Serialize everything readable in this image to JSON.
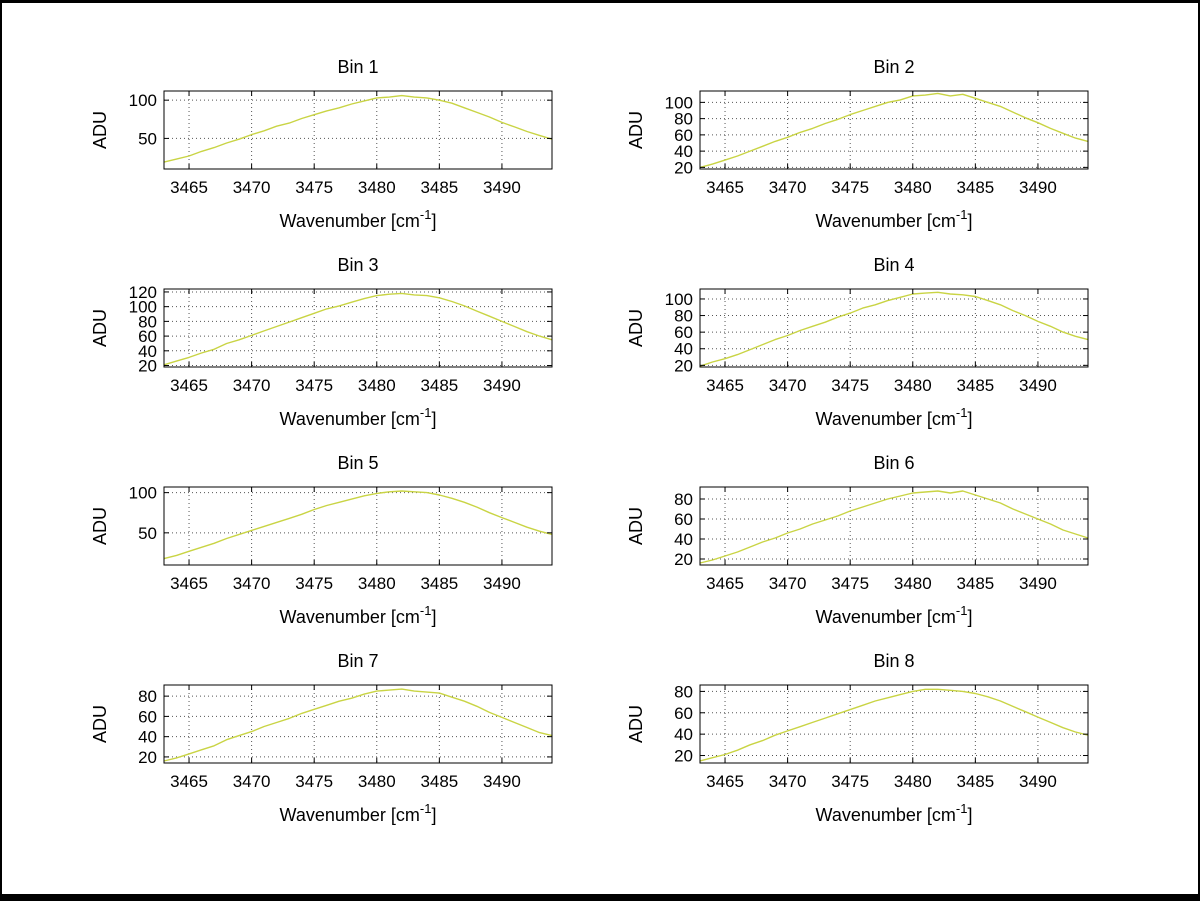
{
  "figure": {
    "background": "#ffffff",
    "border_color": "#000000"
  },
  "style": {
    "line_color": "#c9d444",
    "axis_color": "#000000",
    "grid_color": "#555555",
    "text_color": "#000000"
  },
  "chart_data": [
    {
      "type": "line",
      "title": "Bin 1",
      "ylabel": "ADU",
      "xlabel": {
        "pre": "Wavenumber [cm",
        "sup": "-1",
        "post": "]"
      },
      "xlim": [
        3463,
        3494
      ],
      "ylim": [
        10,
        112
      ],
      "xticks": [
        3465,
        3470,
        3475,
        3480,
        3485,
        3490
      ],
      "yticks": [
        50,
        100
      ],
      "x": [
        3463,
        3464,
        3465,
        3466,
        3467,
        3468,
        3469,
        3470,
        3471,
        3472,
        3473,
        3474,
        3475,
        3476,
        3477,
        3478,
        3479,
        3480,
        3481,
        3482,
        3483,
        3484,
        3485,
        3486,
        3487,
        3488,
        3489,
        3490,
        3491,
        3492,
        3493,
        3494
      ],
      "y": [
        19,
        23,
        27,
        33,
        38,
        44,
        49,
        55,
        60,
        66,
        70,
        76,
        81,
        86,
        90,
        95,
        99,
        103,
        104,
        106,
        104,
        103,
        100,
        96,
        90,
        84,
        78,
        71,
        65,
        59,
        54,
        49
      ]
    },
    {
      "type": "line",
      "title": "Bin 2",
      "ylabel": "ADU",
      "xlabel": {
        "pre": "Wavenumber [cm",
        "sup": "-1",
        "post": "]"
      },
      "xlim": [
        3463,
        3494
      ],
      "ylim": [
        18,
        114
      ],
      "xticks": [
        3465,
        3470,
        3475,
        3480,
        3485,
        3490
      ],
      "yticks": [
        20,
        40,
        60,
        80,
        100
      ],
      "x": [
        3463,
        3464,
        3465,
        3466,
        3467,
        3468,
        3469,
        3470,
        3471,
        3472,
        3473,
        3474,
        3475,
        3476,
        3477,
        3478,
        3479,
        3480,
        3481,
        3482,
        3483,
        3484,
        3485,
        3486,
        3487,
        3488,
        3489,
        3490,
        3491,
        3492,
        3493,
        3494
      ],
      "y": [
        20,
        24,
        29,
        34,
        40,
        46,
        52,
        57,
        63,
        68,
        74,
        79,
        85,
        90,
        95,
        100,
        103,
        108,
        109,
        111,
        108,
        110,
        105,
        100,
        95,
        88,
        81,
        75,
        68,
        62,
        56,
        52
      ]
    },
    {
      "type": "line",
      "title": "Bin 3",
      "ylabel": "ADU",
      "xlabel": {
        "pre": "Wavenumber [cm",
        "sup": "-1",
        "post": "]"
      },
      "xlim": [
        3463,
        3494
      ],
      "ylim": [
        18,
        124
      ],
      "xticks": [
        3465,
        3470,
        3475,
        3480,
        3485,
        3490
      ],
      "yticks": [
        20,
        40,
        60,
        80,
        100,
        120
      ],
      "x": [
        3463,
        3464,
        3465,
        3466,
        3467,
        3468,
        3469,
        3470,
        3471,
        3472,
        3473,
        3474,
        3475,
        3476,
        3477,
        3478,
        3479,
        3480,
        3481,
        3482,
        3483,
        3484,
        3485,
        3486,
        3487,
        3488,
        3489,
        3490,
        3491,
        3492,
        3493,
        3494
      ],
      "y": [
        21,
        26,
        31,
        37,
        42,
        50,
        55,
        61,
        67,
        73,
        79,
        85,
        91,
        97,
        101,
        106,
        111,
        115,
        117,
        118,
        116,
        115,
        112,
        107,
        101,
        94,
        87,
        80,
        73,
        66,
        60,
        55
      ]
    },
    {
      "type": "line",
      "title": "Bin 4",
      "ylabel": "ADU",
      "xlabel": {
        "pre": "Wavenumber [cm",
        "sup": "-1",
        "post": "]"
      },
      "xlim": [
        3463,
        3494
      ],
      "ylim": [
        18,
        112
      ],
      "xticks": [
        3465,
        3470,
        3475,
        3480,
        3485,
        3490
      ],
      "yticks": [
        20,
        40,
        60,
        80,
        100
      ],
      "x": [
        3463,
        3464,
        3465,
        3466,
        3467,
        3468,
        3469,
        3470,
        3471,
        3472,
        3473,
        3474,
        3475,
        3476,
        3477,
        3478,
        3479,
        3480,
        3481,
        3482,
        3483,
        3484,
        3485,
        3486,
        3487,
        3488,
        3489,
        3490,
        3491,
        3492,
        3493,
        3494
      ],
      "y": [
        19,
        24,
        28,
        33,
        39,
        45,
        51,
        56,
        62,
        67,
        72,
        78,
        83,
        89,
        93,
        98,
        102,
        106,
        107,
        108,
        106,
        105,
        103,
        98,
        93,
        86,
        80,
        73,
        67,
        60,
        55,
        51
      ]
    },
    {
      "type": "line",
      "title": "Bin 5",
      "ylabel": "ADU",
      "xlabel": {
        "pre": "Wavenumber [cm",
        "sup": "-1",
        "post": "]"
      },
      "xlim": [
        3463,
        3494
      ],
      "ylim": [
        10,
        107
      ],
      "xticks": [
        3465,
        3470,
        3475,
        3480,
        3485,
        3490
      ],
      "yticks": [
        50,
        100
      ],
      "x": [
        3463,
        3464,
        3465,
        3466,
        3467,
        3468,
        3469,
        3470,
        3471,
        3472,
        3473,
        3474,
        3475,
        3476,
        3477,
        3478,
        3479,
        3480,
        3481,
        3482,
        3483,
        3484,
        3485,
        3486,
        3487,
        3488,
        3489,
        3490,
        3491,
        3492,
        3493,
        3494
      ],
      "y": [
        18,
        22,
        27,
        32,
        37,
        43,
        48,
        53,
        58,
        63,
        68,
        73,
        79,
        84,
        88,
        92,
        96,
        99,
        101,
        102,
        101,
        100,
        97,
        93,
        88,
        82,
        75,
        69,
        63,
        57,
        52,
        48
      ]
    },
    {
      "type": "line",
      "title": "Bin 6",
      "ylabel": "ADU",
      "xlabel": {
        "pre": "Wavenumber [cm",
        "sup": "-1",
        "post": "]"
      },
      "xlim": [
        3463,
        3494
      ],
      "ylim": [
        14,
        92
      ],
      "xticks": [
        3465,
        3470,
        3475,
        3480,
        3485,
        3490
      ],
      "yticks": [
        20,
        40,
        60,
        80
      ],
      "x": [
        3463,
        3464,
        3465,
        3466,
        3467,
        3468,
        3469,
        3470,
        3471,
        3472,
        3473,
        3474,
        3475,
        3476,
        3477,
        3478,
        3479,
        3480,
        3481,
        3482,
        3483,
        3484,
        3485,
        3486,
        3487,
        3488,
        3489,
        3490,
        3491,
        3492,
        3493,
        3494
      ],
      "y": [
        16,
        19,
        23,
        27,
        32,
        37,
        41,
        46,
        50,
        55,
        59,
        63,
        68,
        72,
        76,
        80,
        83,
        86,
        87,
        88,
        86,
        88,
        84,
        80,
        76,
        70,
        65,
        60,
        55,
        49,
        45,
        41
      ]
    },
    {
      "type": "line",
      "title": "Bin 7",
      "ylabel": "ADU",
      "xlabel": {
        "pre": "Wavenumber [cm",
        "sup": "-1",
        "post": "]"
      },
      "xlim": [
        3463,
        3494
      ],
      "ylim": [
        14,
        91
      ],
      "xticks": [
        3465,
        3470,
        3475,
        3480,
        3485,
        3490
      ],
      "yticks": [
        20,
        40,
        60,
        80
      ],
      "x": [
        3463,
        3464,
        3465,
        3466,
        3467,
        3468,
        3469,
        3470,
        3471,
        3472,
        3473,
        3474,
        3475,
        3476,
        3477,
        3478,
        3479,
        3480,
        3481,
        3482,
        3483,
        3484,
        3485,
        3486,
        3487,
        3488,
        3489,
        3490,
        3491,
        3492,
        3493,
        3494
      ],
      "y": [
        16,
        19,
        23,
        27,
        31,
        37,
        41,
        45,
        50,
        54,
        58,
        63,
        67,
        71,
        75,
        78,
        82,
        85,
        86,
        87,
        85,
        84,
        83,
        79,
        75,
        70,
        64,
        59,
        54,
        49,
        44,
        41
      ]
    },
    {
      "type": "line",
      "title": "Bin 8",
      "ylabel": "ADU",
      "xlabel": {
        "pre": "Wavenumber [cm",
        "sup": "-1",
        "post": "]"
      },
      "xlim": [
        3463,
        3494
      ],
      "ylim": [
        13,
        86
      ],
      "xticks": [
        3465,
        3470,
        3475,
        3480,
        3485,
        3490
      ],
      "yticks": [
        20,
        40,
        60,
        80
      ],
      "x": [
        3463,
        3464,
        3465,
        3466,
        3467,
        3468,
        3469,
        3470,
        3471,
        3472,
        3473,
        3474,
        3475,
        3476,
        3477,
        3478,
        3479,
        3480,
        3481,
        3482,
        3483,
        3484,
        3485,
        3486,
        3487,
        3488,
        3489,
        3490,
        3491,
        3492,
        3493,
        3494
      ],
      "y": [
        15,
        18,
        21,
        25,
        30,
        34,
        39,
        43,
        47,
        51,
        55,
        59,
        63,
        67,
        71,
        74,
        77,
        80,
        82,
        82,
        81,
        80,
        78,
        75,
        71,
        66,
        61,
        56,
        51,
        46,
        42,
        39
      ]
    }
  ]
}
